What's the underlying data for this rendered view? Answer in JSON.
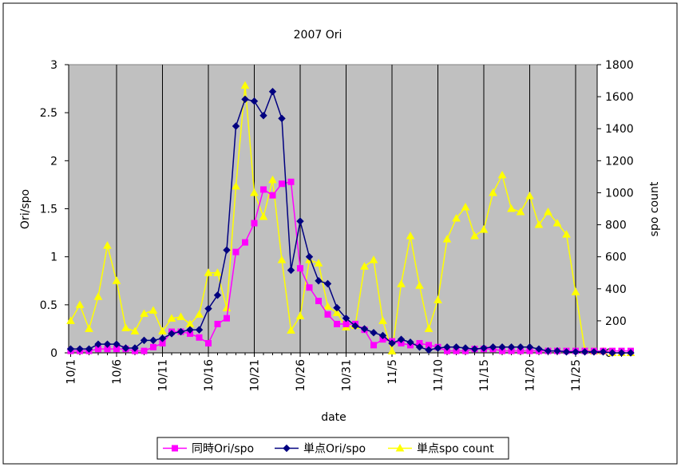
{
  "chart_data": {
    "type": "line",
    "title": "2007 Ori",
    "xlabel": "date",
    "ylabel_left": "Ori/spo",
    "ylabel_right": "spo count",
    "y_left": {
      "min": 0,
      "max": 3,
      "ticks": [
        0,
        0.5,
        1,
        1.5,
        2,
        2.5,
        3
      ],
      "tick_labels": [
        "0",
        "0.5",
        "1",
        "1.5",
        "2",
        "2.5",
        "3"
      ]
    },
    "y_right": {
      "min": 0,
      "max": 1800,
      "ticks": [
        0,
        200,
        400,
        600,
        800,
        1000,
        1200,
        1400,
        1600,
        1800
      ],
      "tick_labels": [
        "0",
        "200",
        "400",
        "600",
        "800",
        "1000",
        "1200",
        "1400",
        "1600",
        "1800"
      ]
    },
    "x_tick_labels": [
      "10/1",
      "10/6",
      "10/11",
      "10/16",
      "10/21",
      "10/26",
      "10/31",
      "11/5",
      "11/10",
      "11/15",
      "11/20",
      "11/25"
    ],
    "x_tick_every": 5,
    "plot_background": "#c0c0c0",
    "grid": "vertical lines at each date tick",
    "legend_position": "bottom-center",
    "series": [
      {
        "name": "同時Ori/spo",
        "axis": "left",
        "color": "#ff00ff",
        "marker": "square",
        "values": [
          0.02,
          0.02,
          0.02,
          0.04,
          0.04,
          0.04,
          0.04,
          0.02,
          0.02,
          0.06,
          0.1,
          0.22,
          0.22,
          0.2,
          0.16,
          0.1,
          0.3,
          0.36,
          1.05,
          1.15,
          1.35,
          1.7,
          1.64,
          1.76,
          1.78,
          0.88,
          0.68,
          0.54,
          0.4,
          0.3,
          0.3,
          0.3,
          0.24,
          0.08,
          0.14,
          0.12,
          0.1,
          0.08,
          0.1,
          0.08,
          0.06,
          0.02,
          0.02,
          0.02,
          0.04,
          0.04,
          0.04,
          0.02,
          0.02,
          0.02,
          0.02,
          0.02,
          0.02,
          0.02,
          0.02,
          0.02,
          0.02,
          0.02,
          0.02,
          0.02,
          0.02,
          0.02
        ]
      },
      {
        "name": "単点Ori/spo",
        "axis": "left",
        "color": "#000080",
        "marker": "diamond",
        "values": [
          0.04,
          0.04,
          0.04,
          0.09,
          0.09,
          0.09,
          0.05,
          0.05,
          0.13,
          0.13,
          0.15,
          0.2,
          0.22,
          0.24,
          0.24,
          0.46,
          0.6,
          1.07,
          2.36,
          2.64,
          2.62,
          2.47,
          2.72,
          2.44,
          0.86,
          1.37,
          1.0,
          0.75,
          0.72,
          0.47,
          0.36,
          0.28,
          0.25,
          0.21,
          0.18,
          0.1,
          0.14,
          0.11,
          0.06,
          0.03,
          0.05,
          0.06,
          0.06,
          0.05,
          0.04,
          0.05,
          0.06,
          0.06,
          0.06,
          0.06,
          0.06,
          0.04,
          0.02,
          0.02,
          0.01,
          0.01,
          0.01,
          0.01,
          0.01,
          0.0,
          0.0,
          0.0
        ]
      },
      {
        "name": "単点spo count",
        "axis": "right",
        "color": "#ffff00",
        "marker": "triangle",
        "values": [
          200,
          300,
          150,
          350,
          670,
          450,
          155,
          135,
          245,
          265,
          135,
          215,
          225,
          180,
          240,
          500,
          500,
          280,
          1040,
          1670,
          1000,
          850,
          1080,
          580,
          140,
          230,
          580,
          560,
          290,
          250,
          160,
          170,
          540,
          580,
          200,
          10,
          430,
          730,
          420,
          150,
          330,
          710,
          840,
          910,
          730,
          770,
          1000,
          1110,
          900,
          880,
          980,
          800,
          880,
          810,
          740,
          380,
          20,
          10,
          10,
          0,
          0,
          0
        ]
      }
    ]
  }
}
